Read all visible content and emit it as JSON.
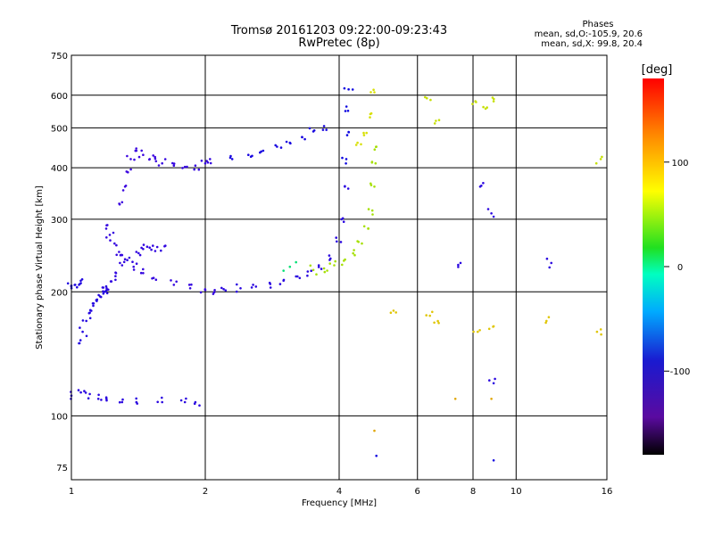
{
  "chart_data": {
    "type": "scatter",
    "title": "Tromsø 20161203 09:22:00-09:23:43",
    "subtitle": "RwPretec (8p)",
    "xlabel": "Frequency [MHz]",
    "ylabel": "Stationary phase Virtual Height [km]",
    "x_scale": "log",
    "y_scale": "log",
    "xlim": [
      1,
      16
    ],
    "ylim": [
      70,
      750
    ],
    "x_ticks": [
      1,
      2,
      4,
      6,
      8,
      10,
      16
    ],
    "x_tick_labels": [
      "1",
      "2",
      "4",
      "6",
      "8",
      "10",
      "16"
    ],
    "y_ticks": [
      75,
      100,
      200,
      300,
      400,
      500,
      600,
      750
    ],
    "y_tick_labels": [
      "75",
      "100",
      "200",
      "300",
      "400",
      "500",
      "600",
      "750"
    ],
    "grid": true,
    "phase_stats": {
      "title": "Phases",
      "line_o": "mean, sd,O:-105.9, 20.6",
      "line_x": "mean, sd,X:  99.8, 20.4"
    },
    "colorbar": {
      "label": "[deg]",
      "ticks": [
        100,
        0,
        -100
      ],
      "tick_labels": [
        "100",
        "0",
        "-100"
      ],
      "range": [
        -180,
        180
      ]
    },
    "traces": [
      {
        "mode": "o",
        "phase": -110,
        "x": [
          1.0,
          1.02,
          1.04,
          1.05
        ],
        "y": [
          207,
          208,
          208,
          210
        ]
      },
      {
        "mode": "o",
        "phase": -115,
        "x": [
          1.04,
          1.06,
          1.08,
          1.1,
          1.12,
          1.14,
          1.16,
          1.18,
          1.19,
          1.2
        ],
        "y": [
          150,
          160,
          170,
          178,
          185,
          190,
          195,
          198,
          200,
          202
        ]
      },
      {
        "mode": "o",
        "phase": -125,
        "x": [
          1.2,
          1.23,
          1.26,
          1.3,
          1.35,
          1.4,
          1.45,
          1.5,
          1.56,
          1.62
        ],
        "y": [
          204,
          212,
          222,
          232,
          242,
          250,
          254,
          256,
          257,
          258
        ]
      },
      {
        "mode": "o",
        "phase": -130,
        "x": [
          1.2,
          1.22,
          1.25,
          1.28,
          1.32,
          1.38,
          1.45,
          1.55,
          1.7,
          1.85,
          2.0,
          2.1
        ],
        "y": [
          290,
          275,
          262,
          250,
          240,
          230,
          222,
          214,
          208,
          204,
          202,
          202
        ]
      },
      {
        "mode": "o",
        "phase": -120,
        "x": [
          2.2,
          2.4,
          2.6,
          2.8,
          3.0,
          3.2,
          3.4,
          3.6,
          3.8,
          3.95,
          4.05,
          4.12
        ],
        "y": [
          203,
          204,
          206,
          209,
          213,
          218,
          224,
          232,
          245,
          265,
          300,
          360
        ]
      },
      {
        "mode": "o",
        "phase": -95,
        "x": [
          4.15,
          4.17,
          4.19,
          4.2
        ],
        "y": [
          420,
          480,
          550,
          620
        ]
      },
      {
        "mode": "o",
        "phase": -135,
        "x": [
          1.3,
          1.32,
          1.34,
          1.36,
          1.4,
          1.45,
          1.5,
          1.55
        ],
        "y": [
          330,
          360,
          390,
          420,
          440,
          430,
          420,
          415
        ]
      },
      {
        "mode": "o",
        "phase": -130,
        "x": [
          1.6,
          1.7,
          1.8,
          1.9,
          2.0,
          2.05
        ],
        "y": [
          410,
          405,
          402,
          405,
          410,
          420
        ]
      },
      {
        "mode": "o",
        "phase": -105,
        "x": [
          2.3,
          2.5,
          2.7,
          2.9,
          3.1,
          3.3,
          3.5,
          3.7
        ],
        "y": [
          420,
          430,
          440,
          450,
          460,
          475,
          490,
          505
        ]
      },
      {
        "mode": "o",
        "phase": -120,
        "x": [
          1.0,
          1.05,
          1.1,
          1.15,
          1.2,
          1.3,
          1.4,
          1.6,
          1.8,
          1.9
        ],
        "y": [
          112,
          114,
          113,
          110,
          109,
          108,
          108,
          108,
          108,
          108
        ]
      },
      {
        "mode": "x",
        "phase": 95,
        "x": [
          3.5,
          3.7,
          3.9,
          4.1,
          4.3,
          4.5,
          4.65,
          4.75,
          4.8,
          4.83,
          4.85
        ],
        "y": [
          226,
          228,
          232,
          238,
          248,
          262,
          285,
          315,
          360,
          410,
          450
        ]
      },
      {
        "mode": "x",
        "phase": 110,
        "x": [
          4.4,
          4.55,
          4.7,
          4.8
        ],
        "y": [
          460,
          480,
          540,
          610
        ]
      },
      {
        "mode": "x",
        "phase": 10,
        "x": [
          3.0,
          3.1,
          3.2
        ],
        "y": [
          225,
          230,
          236
        ]
      },
      {
        "mode": "x",
        "phase": 120,
        "x": [
          5.3,
          6.4,
          6.7,
          8.2,
          8.9,
          11.7,
          15.2
        ],
        "y": [
          180,
          175,
          168,
          160,
          165,
          170,
          160
        ]
      },
      {
        "mode": "x",
        "phase": 105,
        "x": [
          6.3,
          6.6,
          8.1,
          8.6,
          8.9,
          15.5
        ],
        "y": [
          590,
          520,
          580,
          560,
          580,
          420
        ]
      },
      {
        "mode": "o",
        "phase": -120,
        "x": [
          7.5,
          8.3,
          8.8,
          8.9,
          12.0
        ],
        "y": [
          235,
          360,
          310,
          120,
          235
        ]
      },
      {
        "mode": "x",
        "phase": 130,
        "x": [
          4.8,
          7.3,
          8.8
        ],
        "y": [
          92,
          110,
          110
        ]
      },
      {
        "mode": "o",
        "phase": -100,
        "x": [
          4.85,
          8.9
        ],
        "y": [
          80,
          78
        ]
      }
    ]
  }
}
